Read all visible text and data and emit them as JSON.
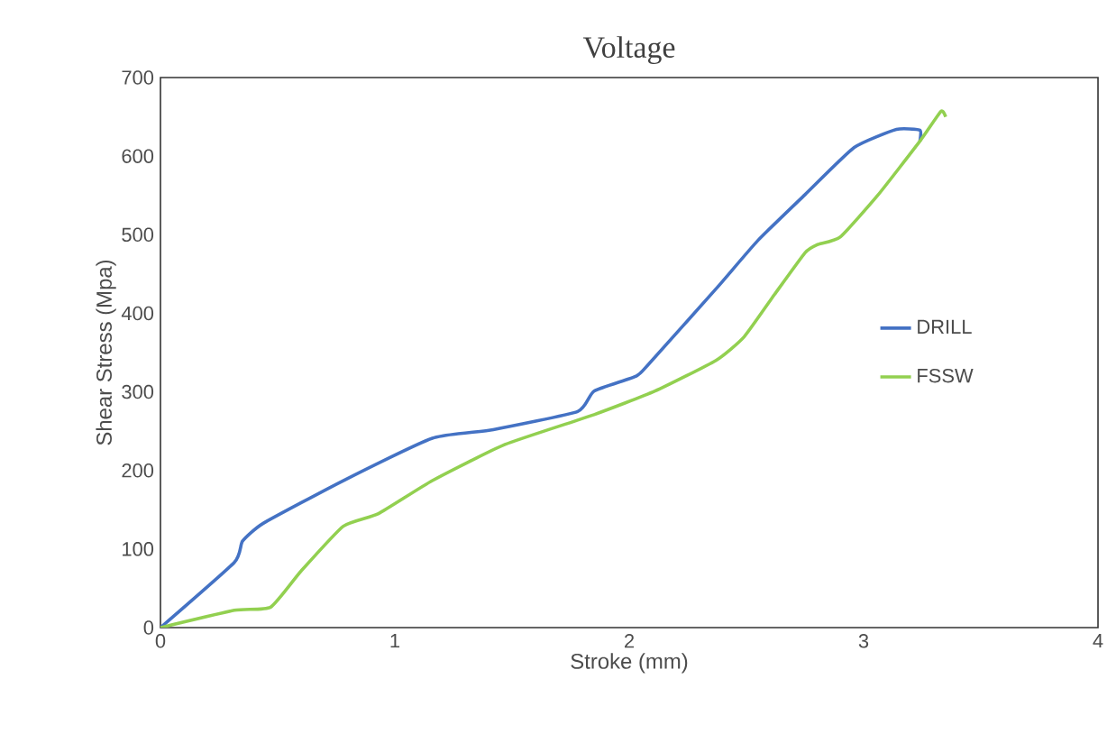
{
  "chart_data": {
    "type": "line",
    "title": "Voltage",
    "xlabel": "Stroke (mm)",
    "ylabel": "Shear Stress (Mpa)",
    "xlim": [
      0,
      4
    ],
    "xticks": [
      0,
      1,
      2,
      3,
      4
    ],
    "ylim": [
      0,
      700
    ],
    "yticks": [
      0,
      100,
      200,
      300,
      400,
      500,
      600,
      700
    ],
    "legend": "right",
    "marker": "none",
    "line_style": "solid",
    "series": [
      {
        "name": "DRILL",
        "color": "#4472c4",
        "x": [
          0,
          0.315,
          0.35,
          0.44,
          0.78,
          1.16,
          1.42,
          1.78,
          1.85,
          2.03,
          2.085,
          2.37,
          2.55,
          2.75,
          2.96,
          3.14,
          3.24,
          3.24
        ],
        "values": [
          0,
          83,
          110,
          133,
          187,
          241,
          252,
          275,
          301,
          320,
          336,
          431,
          493,
          551,
          611,
          634,
          633,
          619
        ]
      },
      {
        "name": "FSSW",
        "color": "#92d050",
        "x": [
          0,
          0.315,
          0.47,
          0.6,
          0.78,
          0.93,
          1.16,
          1.47,
          1.85,
          2.11,
          2.37,
          2.49,
          2.62,
          2.75,
          2.8,
          2.9,
          3.06,
          3.24,
          3.33,
          3.35
        ],
        "values": [
          0,
          22,
          26,
          72,
          129,
          145,
          187,
          233,
          271,
          301,
          340,
          370,
          424,
          477,
          487,
          497,
          550,
          619,
          657,
          650
        ]
      }
    ]
  }
}
